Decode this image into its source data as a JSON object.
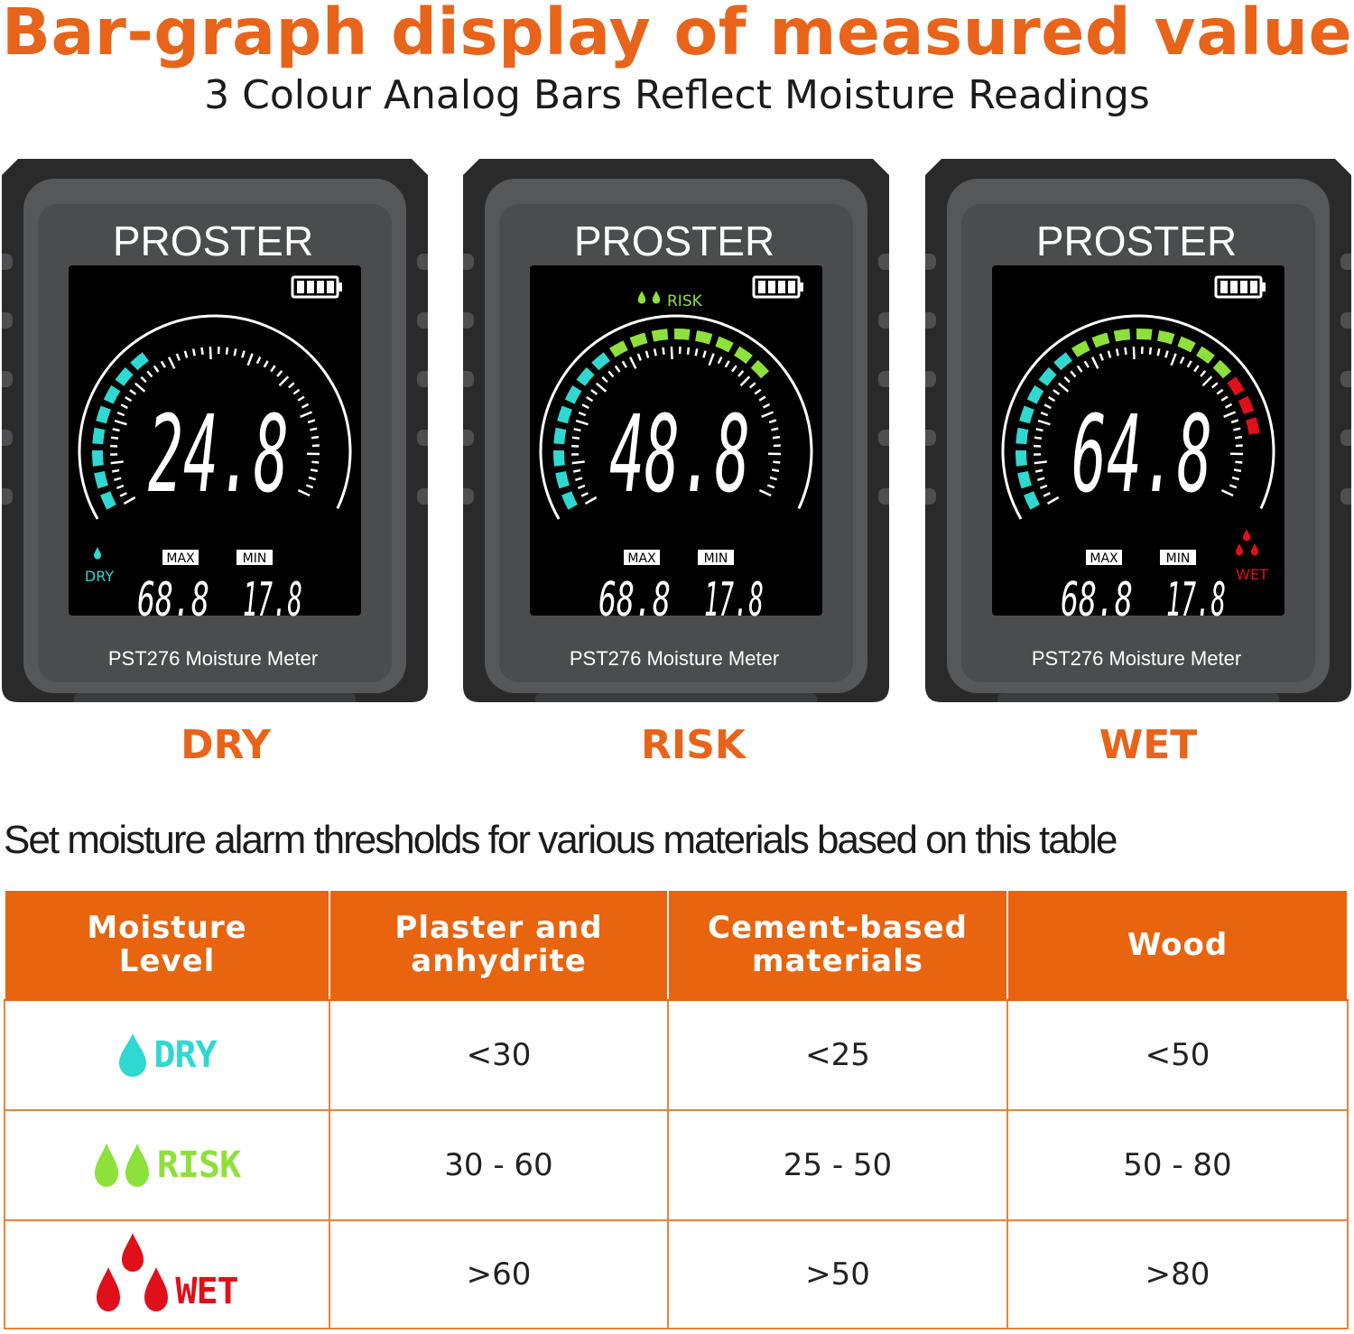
{
  "header": {
    "title": "Bar-graph display of measured value",
    "subtitle": "3 Colour Analog Bars Reflect Moisture Readings"
  },
  "colors": {
    "accent": "#e8641a",
    "dry": "#2fd8d0",
    "risk": "#8ee03a",
    "wet": "#e0101a"
  },
  "meters": [
    {
      "brand": "PROSTER",
      "model": "PST276  Moisture Meter",
      "reading": "24.8",
      "max_label": "MAX",
      "max_value": "68.8",
      "min_label": "MIN",
      "min_value": "17.8",
      "indicator": "DRY",
      "indicator_icon": "single-drop-icon",
      "state_label": "DRY",
      "lit_segments": 8
    },
    {
      "brand": "PROSTER",
      "model": "PST276  Moisture Meter",
      "reading": "48.8",
      "max_label": "MAX",
      "max_value": "68.8",
      "min_label": "MIN",
      "min_value": "17.8",
      "indicator": "RISK",
      "indicator_icon": "double-drop-icon",
      "state_label": "RISK",
      "lit_segments": 16
    },
    {
      "brand": "PROSTER",
      "model": "PST276  Moisture Meter",
      "reading": "64.8",
      "max_label": "MAX",
      "max_value": "68.8",
      "min_label": "MIN",
      "min_value": "17.8",
      "indicator": "WET",
      "indicator_icon": "triple-drop-icon",
      "state_label": "WET",
      "lit_segments": 19
    }
  ],
  "table": {
    "caption": "Set moisture alarm thresholds for various materials based on this table",
    "headers": [
      [
        "Moisture",
        "Level"
      ],
      [
        "Plaster and",
        "anhydrite"
      ],
      [
        "Cement-based",
        "materials"
      ],
      [
        "Wood"
      ]
    ],
    "rows": [
      {
        "level": "DRY",
        "icon": "single-drop-icon",
        "values": [
          "<30",
          "<25",
          "<50"
        ]
      },
      {
        "level": "RISK",
        "icon": "double-drop-icon",
        "values": [
          "30 - 60",
          "25 - 50",
          "50 - 80"
        ]
      },
      {
        "level": "WET",
        "icon": "triple-drop-icon",
        "values": [
          ">60",
          ">50",
          ">80"
        ]
      }
    ]
  }
}
